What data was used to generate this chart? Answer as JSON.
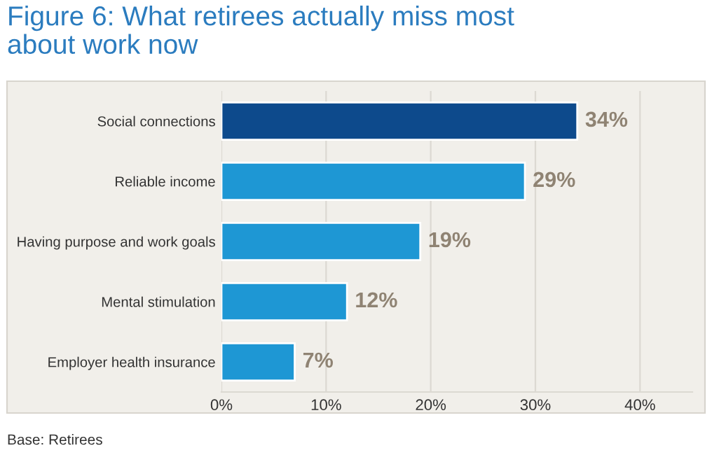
{
  "chart_data": {
    "type": "bar",
    "orientation": "horizontal",
    "title": "Figure 6: What retirees actually miss most\nabout work now",
    "categories": [
      "Social connections",
      "Reliable income",
      "Having purpose and work goals",
      "Mental stimulation",
      "Employer health insurance"
    ],
    "values": [
      34,
      29,
      19,
      12,
      7
    ],
    "colors": [
      "#0d4a8c",
      "#1e97d4",
      "#1e97d4",
      "#1e97d4",
      "#1e97d4"
    ],
    "value_labels": [
      "34%",
      "29%",
      "19%",
      "12%",
      "7%"
    ],
    "xlim": [
      0,
      45
    ],
    "xticks": [
      {
        "value": 0,
        "label": "0%"
      },
      {
        "value": 10,
        "label": "10%"
      },
      {
        "value": 20,
        "label": "20%"
      },
      {
        "value": 30,
        "label": "30%"
      },
      {
        "value": 40,
        "label": "40%"
      }
    ],
    "grid": "x",
    "annotations": [
      "Base: Retirees"
    ]
  }
}
